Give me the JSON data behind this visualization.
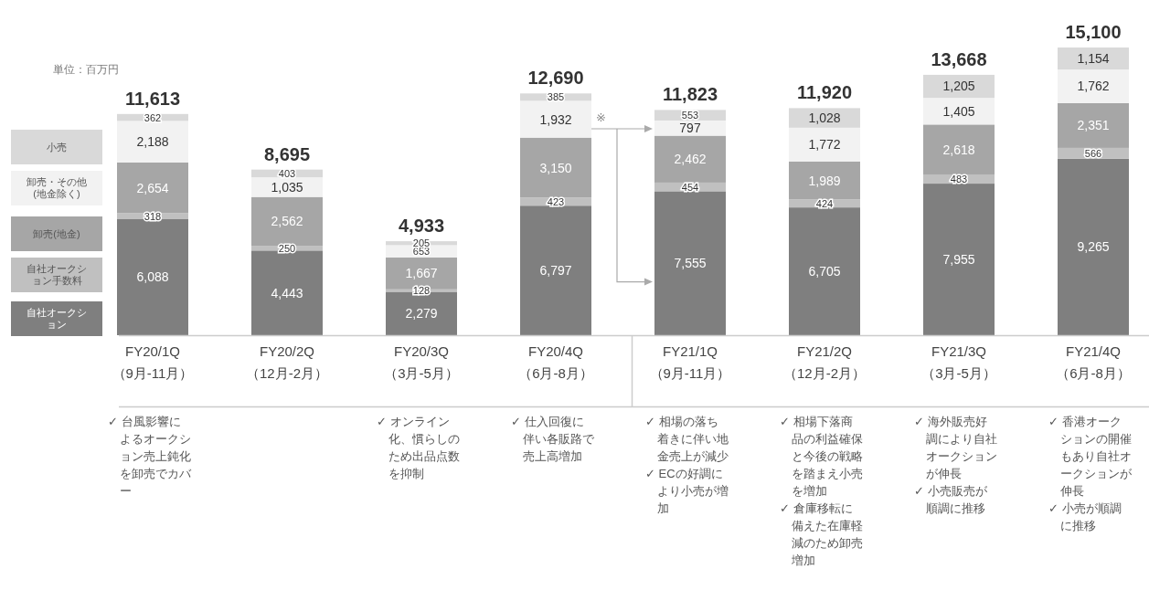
{
  "chart_data": {
    "type": "bar",
    "stacked": true,
    "legend": "left",
    "ylim": [
      0,
      15100
    ],
    "categories": [
      "FY20/1Q\n（9月-11月）",
      "FY20/2Q\n（12月-2月）",
      "FY20/3Q\n（3月-5月）",
      "FY20/4Q\n（6月-8月）",
      "FY21/1Q\n（9月-11月）",
      "FY21/2Q\n（12月-2月）",
      "FY21/3Q\n（3月-5月）",
      "FY21/4Q\n（6月-8月）"
    ],
    "series": [
      {
        "name": "自社オークション",
        "color": "#7f7f7f",
        "values": [
          6088,
          4443,
          2279,
          6797,
          7555,
          6705,
          7955,
          9265
        ],
        "value_labels": [
          "6,088",
          "4,443",
          "2,279",
          "6,797",
          "7,555",
          "6,705",
          "7,955",
          "9,265"
        ]
      },
      {
        "name": "自社オークション手数料",
        "color": "#c0c0c0",
        "values": [
          318,
          250,
          128,
          423,
          454,
          424,
          483,
          566
        ],
        "value_labels": [
          "318",
          "250",
          "128",
          "423",
          "454",
          "424",
          "483",
          "566"
        ]
      },
      {
        "name": "卸売(地金)",
        "color": "#a6a6a6",
        "values": [
          2654,
          2562,
          1667,
          3150,
          2462,
          1989,
          2618,
          2351
        ],
        "value_labels": [
          "2,654",
          "2,562",
          "1,667",
          "3,150",
          "2,462",
          "1,989",
          "2,618",
          "2,351"
        ]
      },
      {
        "name": "卸売・その他(地金除く)",
        "color": "#f2f2f2",
        "values": [
          2188,
          1035,
          653,
          1932,
          797,
          1772,
          1405,
          1762
        ],
        "value_labels": [
          "2,188",
          "1,035",
          "653",
          "1,932",
          "797",
          "1,772",
          "1,405",
          "1,762"
        ]
      },
      {
        "name": "小売",
        "color": "#d9d9d9",
        "values": [
          362,
          403,
          205,
          385,
          553,
          1028,
          1205,
          1154
        ],
        "value_labels": [
          "362",
          "403",
          "205",
          "385",
          "553",
          "1,028",
          "1,205",
          "1,154"
        ]
      }
    ],
    "totals": [
      "11,613",
      "8,695",
      "4,933",
      "12,690",
      "11,823",
      "11,920",
      "13,668",
      "15,100"
    ],
    "annotations": [
      "単位：百万円",
      "※",
      "✓ 台風影響によるオークション売上鈍化を卸売でカバー",
      "✓ オンライン化、慣らしのため出品点数を抑制",
      "✓ 仕入回復に伴い各販路で売上高増加",
      "✓ 相場の落ち着きに伴い地金売上が減少\n✓ ECの好調により小売が増加",
      "✓ 相場下落商品の利益確保と今後の戦略を踏まえ小売を増加\n✓ 倉庫移転に備えた在庫軽減のため卸売増加",
      "✓ 海外販売好調により自社オークションが伸長\n✓ 小売販売が順調に推移",
      "✓ 香港オークションの開催もあり自社オークションが伸長\n✓ 小売が順調に推移"
    ]
  }
}
